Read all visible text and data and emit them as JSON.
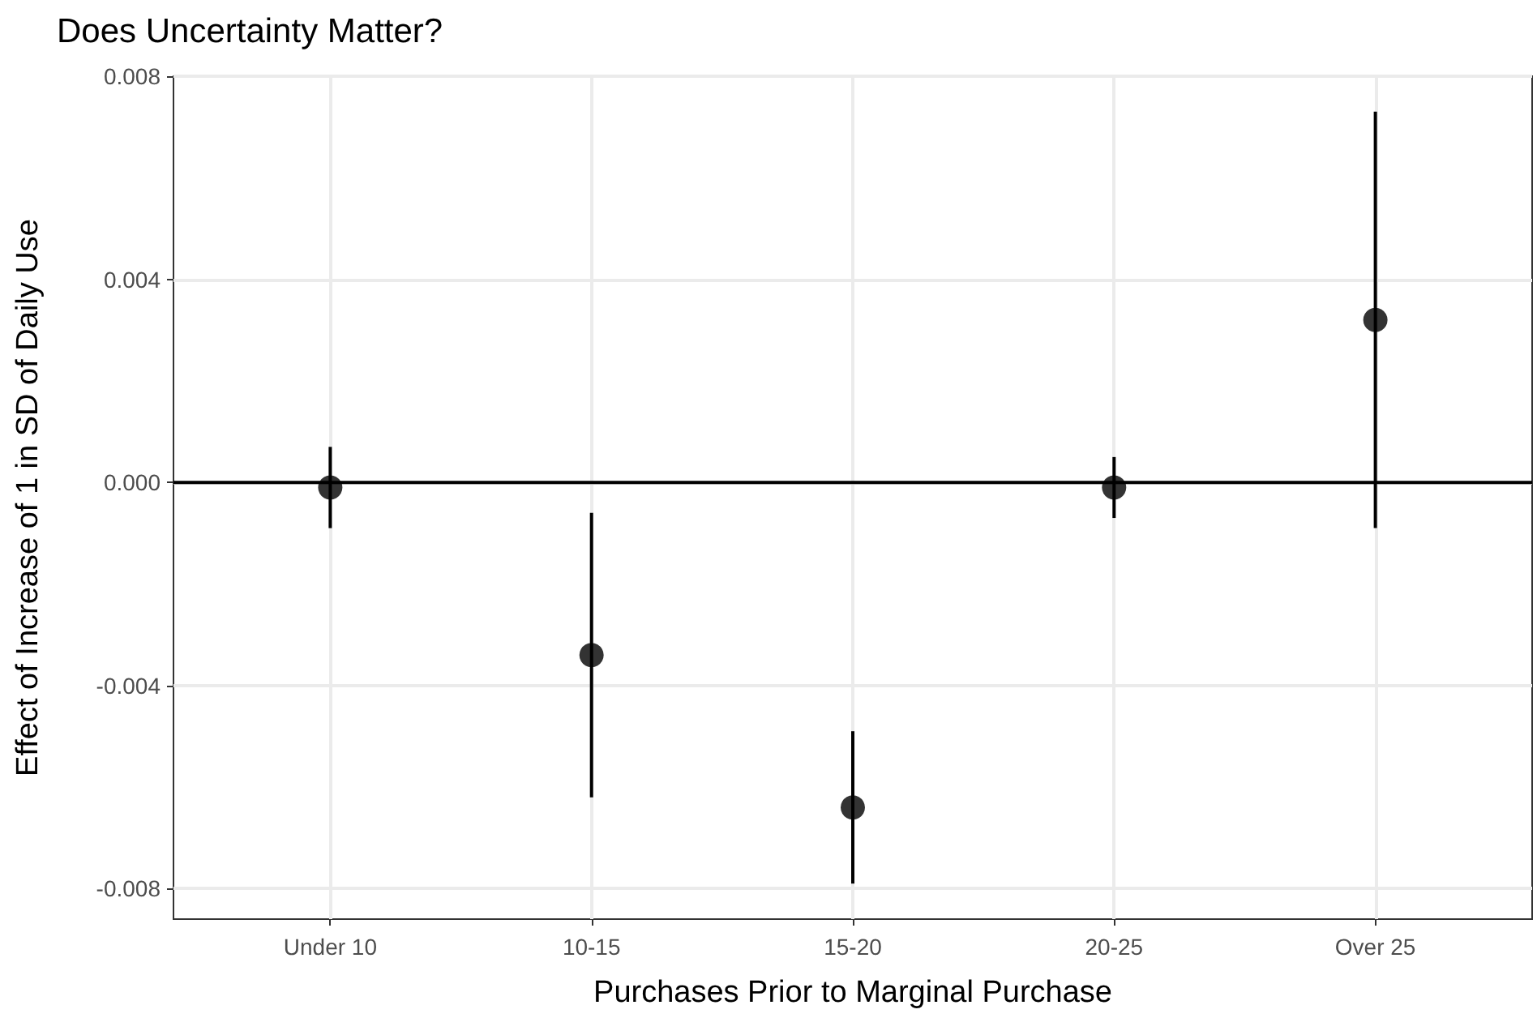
{
  "chart_data": {
    "type": "scatter",
    "title": "Does Uncertainty Matter?",
    "xlabel": "Purchases Prior to Marginal Purchase",
    "ylabel": "Effect of Increase of 1 in SD of Daily Use",
    "categories": [
      "Under 10",
      "10-15",
      "15-20",
      "20-25",
      "Over 25"
    ],
    "values": [
      -0.0001,
      -0.0034,
      -0.0064,
      -0.0001,
      0.0032
    ],
    "errors": [
      [
        -0.0009,
        0.0007
      ],
      [
        -0.0062,
        -0.0006
      ],
      [
        -0.0079,
        -0.0049
      ],
      [
        -0.0007,
        0.0005
      ],
      [
        -0.0009,
        0.0073
      ]
    ],
    "color": "#000000",
    "marker": "circle",
    "ylim": [
      -0.0086,
      0.008
    ],
    "yticks": [
      {
        "value": -0.008,
        "label": "-0.008"
      },
      {
        "value": -0.004,
        "label": "-0.004"
      },
      {
        "value": 0,
        "label": "0.000"
      },
      {
        "value": 0.004,
        "label": "0.004"
      },
      {
        "value": 0.008,
        "label": "0.008"
      }
    ],
    "ref_lines": [
      {
        "axis": "y",
        "value": 0,
        "color": "#000000",
        "line_style": "solid"
      }
    ],
    "grid": true
  }
}
